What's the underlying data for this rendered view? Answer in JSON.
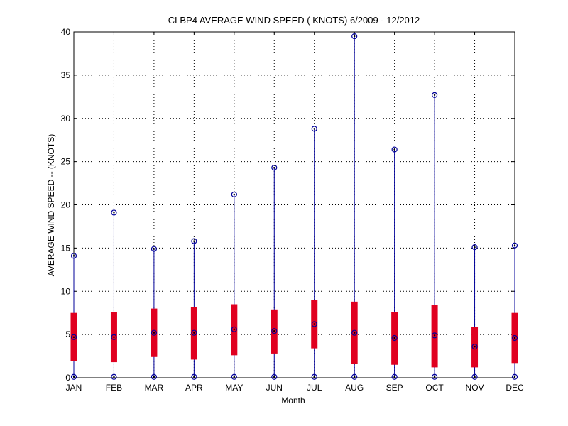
{
  "chart_data": {
    "type": "box",
    "title": "CLBP4  AVERAGE WIND SPEED ( KNOTS) 6/2009 - 12/2012",
    "xlabel": "Month",
    "ylabel": "AVERAGE WIND SPEED -- (KNOTS)",
    "ylim": [
      0,
      40
    ],
    "yticks": [
      0,
      5,
      10,
      15,
      20,
      25,
      30,
      35,
      40
    ],
    "grid": true,
    "categories": [
      "JAN",
      "FEB",
      "MAR",
      "APR",
      "MAY",
      "JUN",
      "JUL",
      "AUG",
      "SEP",
      "OCT",
      "NOV",
      "DEC"
    ],
    "series": [
      {
        "min": [
          0.1,
          0.1,
          0.1,
          0.1,
          0.1,
          0.1,
          0.1,
          0.1,
          0.1,
          0.1,
          0.1,
          0.1
        ],
        "q1": [
          1.9,
          1.8,
          2.4,
          2.1,
          2.6,
          2.8,
          3.4,
          1.6,
          1.5,
          1.2,
          1.2,
          1.7
        ],
        "median": [
          4.7,
          4.7,
          5.2,
          5.2,
          5.6,
          5.4,
          6.2,
          5.2,
          4.6,
          4.9,
          3.6,
          4.6
        ],
        "q3": [
          7.5,
          7.6,
          8.0,
          8.2,
          8.5,
          7.9,
          9.0,
          8.8,
          7.6,
          8.4,
          5.9,
          7.5
        ],
        "max": [
          14.1,
          19.1,
          14.9,
          15.8,
          21.2,
          24.3,
          28.8,
          39.5,
          26.4,
          32.7,
          15.1,
          15.3
        ]
      }
    ],
    "colors": {
      "box": "#e00020",
      "whisker": "#000099",
      "marker": "#000000",
      "grid": "#000000"
    }
  }
}
